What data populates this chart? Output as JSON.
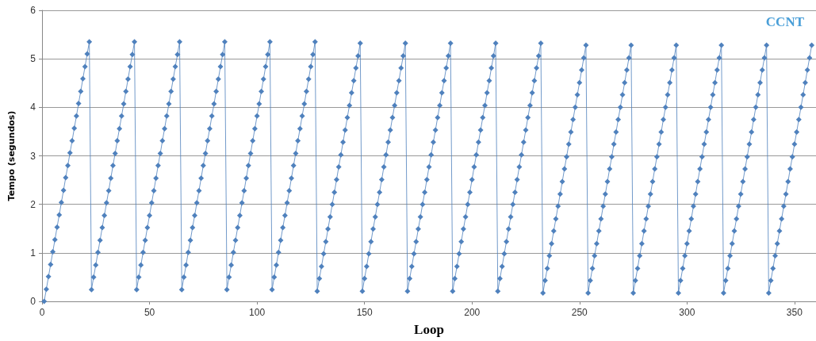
{
  "chart_data": {
    "type": "line",
    "xlabel": "Loop",
    "ylabel": "Tempo (segundos)",
    "xlim": [
      0,
      360
    ],
    "xticks": [
      0,
      50,
      100,
      150,
      200,
      250,
      300,
      350
    ],
    "ylim": [
      0,
      6
    ],
    "yticks": [
      0,
      1,
      2,
      3,
      4,
      5,
      6
    ],
    "grid": "y",
    "legend": "top right",
    "marker": "diamond",
    "line_style": "solid",
    "x": [
      1,
      2,
      3,
      4,
      5,
      6,
      7,
      8,
      9,
      10,
      11,
      12,
      13,
      14,
      15,
      16,
      17,
      18,
      19,
      20,
      21,
      22,
      23,
      24,
      25,
      26,
      27,
      28,
      29,
      30,
      31,
      32,
      33,
      34,
      35,
      36,
      37,
      38,
      39,
      40,
      41,
      42,
      43,
      44,
      45,
      46,
      47,
      48,
      49,
      50,
      51,
      52,
      53,
      54,
      55,
      56,
      57,
      58,
      59,
      60,
      61,
      62,
      63,
      64,
      65,
      66,
      67,
      68,
      69,
      70,
      71,
      72,
      73,
      74,
      75,
      76,
      77,
      78,
      79,
      80,
      81,
      82,
      83,
      84,
      85,
      86,
      87,
      88,
      89,
      90,
      91,
      92,
      93,
      94,
      95,
      96,
      97,
      98,
      99,
      100,
      101,
      102,
      103,
      104,
      105,
      106,
      107,
      108,
      109,
      110,
      111,
      112,
      113,
      114,
      115,
      116,
      117,
      118,
      119,
      120,
      121,
      122,
      123,
      124,
      125,
      126,
      127,
      128,
      129,
      130,
      131,
      132,
      133,
      134,
      135,
      136,
      137,
      138,
      139,
      140,
      141,
      142,
      143,
      144,
      145,
      146,
      147,
      148,
      149,
      150,
      151,
      152,
      153,
      154,
      155,
      156,
      157,
      158,
      159,
      160,
      161,
      162,
      163,
      164,
      165,
      166,
      167,
      168,
      169,
      170,
      171,
      172,
      173,
      174,
      175,
      176,
      177,
      178,
      179,
      180,
      181,
      182,
      183,
      184,
      185,
      186,
      187,
      188,
      189,
      190,
      191,
      192,
      193,
      194,
      195,
      196,
      197,
      198,
      199,
      200,
      201,
      202,
      203,
      204,
      205,
      206,
      207,
      208,
      209,
      210,
      211,
      212,
      213,
      214,
      215,
      216,
      217,
      218,
      219,
      220,
      221,
      222,
      223,
      224,
      225,
      226,
      227,
      228,
      229,
      230,
      231,
      232,
      233,
      234,
      235,
      236,
      237,
      238,
      239,
      240,
      241,
      242,
      243,
      244,
      245,
      246,
      247,
      248,
      249,
      250,
      251,
      252,
      253,
      254,
      255,
      256,
      257,
      258,
      259,
      260,
      261,
      262,
      263,
      264,
      265,
      266,
      267,
      268,
      269,
      270,
      271,
      272,
      273,
      274,
      275,
      276,
      277,
      278,
      279,
      280,
      281,
      282,
      283,
      284,
      285,
      286,
      287,
      288,
      289,
      290,
      291,
      292,
      293,
      294,
      295,
      296,
      297,
      298,
      299,
      300,
      301,
      302,
      303,
      304,
      305,
      306,
      307,
      308,
      309,
      310,
      311,
      312,
      313,
      314,
      315,
      316,
      317,
      318,
      319,
      320,
      321,
      322,
      323,
      324,
      325,
      326,
      327,
      328,
      329,
      330,
      331,
      332,
      333,
      334,
      335,
      336,
      337,
      338,
      339,
      340,
      341,
      342,
      343,
      344,
      345,
      346,
      347,
      348,
      349,
      350,
      351,
      352,
      353,
      354,
      355,
      356,
      357,
      358
    ],
    "series": [
      {
        "name": "CCNT",
        "color": "#4f81bd",
        "values": [
          0,
          0.25,
          0.51,
          0.76,
          1.02,
          1.27,
          1.53,
          1.78,
          2.04,
          2.29,
          2.55,
          2.8,
          3.06,
          3.31,
          3.57,
          3.82,
          4.08,
          4.33,
          4.59,
          4.84,
          5.1,
          5.35,
          0.24,
          0.5,
          0.75,
          1.01,
          1.26,
          1.52,
          1.77,
          2.03,
          2.28,
          2.54,
          2.8,
          3.05,
          3.31,
          3.56,
          3.82,
          4.07,
          4.33,
          4.58,
          4.84,
          5.09,
          5.35,
          0.24,
          0.5,
          0.75,
          1.01,
          1.26,
          1.52,
          1.77,
          2.03,
          2.28,
          2.54,
          2.8,
          3.05,
          3.31,
          3.56,
          3.82,
          4.07,
          4.33,
          4.58,
          4.84,
          5.09,
          5.35,
          0.24,
          0.5,
          0.75,
          1.01,
          1.26,
          1.52,
          1.77,
          2.03,
          2.28,
          2.54,
          2.8,
          3.05,
          3.31,
          3.56,
          3.82,
          4.07,
          4.33,
          4.58,
          4.84,
          5.09,
          5.35,
          0.24,
          0.5,
          0.75,
          1.01,
          1.26,
          1.52,
          1.77,
          2.03,
          2.28,
          2.54,
          2.8,
          3.05,
          3.31,
          3.56,
          3.82,
          4.07,
          4.33,
          4.58,
          4.84,
          5.09,
          5.35,
          0.24,
          0.5,
          0.75,
          1.01,
          1.26,
          1.52,
          1.77,
          2.03,
          2.28,
          2.54,
          2.8,
          3.05,
          3.31,
          3.56,
          3.82,
          4.07,
          4.33,
          4.58,
          4.84,
          5.09,
          5.35,
          0.21,
          0.47,
          0.72,
          0.98,
          1.23,
          1.49,
          1.74,
          2,
          2.25,
          2.51,
          2.77,
          3.02,
          3.28,
          3.53,
          3.79,
          4.04,
          4.3,
          4.55,
          4.81,
          5.06,
          5.32,
          0.21,
          0.47,
          0.72,
          0.98,
          1.23,
          1.49,
          1.74,
          2,
          2.25,
          2.51,
          2.77,
          3.02,
          3.28,
          3.53,
          3.79,
          4.04,
          4.3,
          4.55,
          4.81,
          5.06,
          5.32,
          0.21,
          0.47,
          0.72,
          0.98,
          1.23,
          1.49,
          1.74,
          2,
          2.25,
          2.51,
          2.77,
          3.02,
          3.28,
          3.53,
          3.79,
          4.04,
          4.3,
          4.55,
          4.81,
          5.06,
          5.32,
          0.21,
          0.47,
          0.72,
          0.98,
          1.23,
          1.49,
          1.74,
          2,
          2.25,
          2.51,
          2.77,
          3.02,
          3.28,
          3.53,
          3.79,
          4.04,
          4.3,
          4.55,
          4.81,
          5.06,
          5.32,
          0.21,
          0.47,
          0.72,
          0.98,
          1.23,
          1.49,
          1.74,
          2,
          2.25,
          2.51,
          2.77,
          3.02,
          3.28,
          3.53,
          3.79,
          4.04,
          4.3,
          4.55,
          4.81,
          5.06,
          5.32,
          0.17,
          0.43,
          0.68,
          0.94,
          1.19,
          1.45,
          1.7,
          1.96,
          2.21,
          2.47,
          2.73,
          2.98,
          3.24,
          3.49,
          3.75,
          4,
          4.26,
          4.51,
          4.77,
          5.02,
          5.28,
          0.17,
          0.43,
          0.68,
          0.94,
          1.19,
          1.45,
          1.7,
          1.96,
          2.21,
          2.47,
          2.73,
          2.98,
          3.24,
          3.49,
          3.75,
          4,
          4.26,
          4.51,
          4.77,
          5.02,
          5.28,
          0.17,
          0.43,
          0.68,
          0.94,
          1.19,
          1.45,
          1.7,
          1.96,
          2.21,
          2.47,
          2.73,
          2.98,
          3.24,
          3.49,
          3.75,
          4,
          4.26,
          4.51,
          4.77,
          5.02,
          5.28,
          0.17,
          0.43,
          0.68,
          0.94,
          1.19,
          1.45,
          1.7,
          1.96,
          2.21,
          2.47,
          2.73,
          2.98,
          3.24,
          3.49,
          3.75,
          4,
          4.26,
          4.51,
          4.77,
          5.02,
          5.28,
          0.17,
          0.43,
          0.68,
          0.94,
          1.19,
          1.45,
          1.7,
          1.96,
          2.21,
          2.47,
          2.73,
          2.98,
          3.24,
          3.49,
          3.75,
          4,
          4.26,
          4.51,
          4.77,
          5.02,
          5.28,
          0.17,
          0.43,
          0.68,
          0.94,
          1.19,
          1.45,
          1.7,
          1.96,
          2.21,
          2.47,
          2.73,
          2.98,
          3.24,
          3.49,
          3.75,
          4,
          4.26,
          4.51,
          4.77,
          5.02,
          5.28
        ]
      }
    ]
  }
}
